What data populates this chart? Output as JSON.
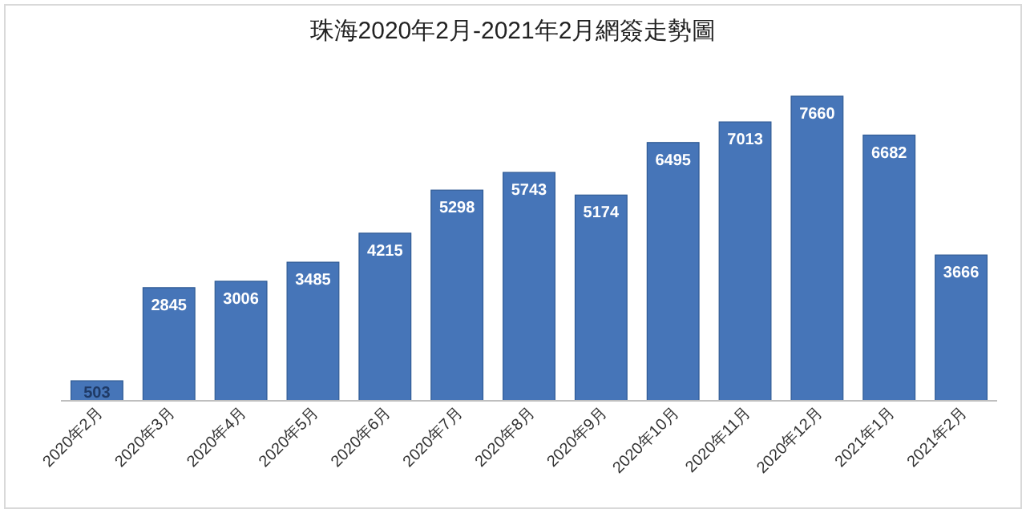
{
  "chart_data": {
    "type": "bar",
    "title": "珠海2020年2月-2021年2月網簽走勢圖",
    "categories": [
      "2020年2月",
      "2020年3月",
      "2020年4月",
      "2020年5月",
      "2020年6月",
      "2020年7月",
      "2020年8月",
      "2020年9月",
      "2020年10月",
      "2020年11月",
      "2020年12月",
      "2021年1月",
      "2021年2月"
    ],
    "values": [
      503,
      2845,
      3006,
      3485,
      4215,
      5298,
      5743,
      5174,
      6495,
      7013,
      7660,
      6682,
      3666
    ],
    "color": "#4675b8",
    "data_labels": true
  }
}
